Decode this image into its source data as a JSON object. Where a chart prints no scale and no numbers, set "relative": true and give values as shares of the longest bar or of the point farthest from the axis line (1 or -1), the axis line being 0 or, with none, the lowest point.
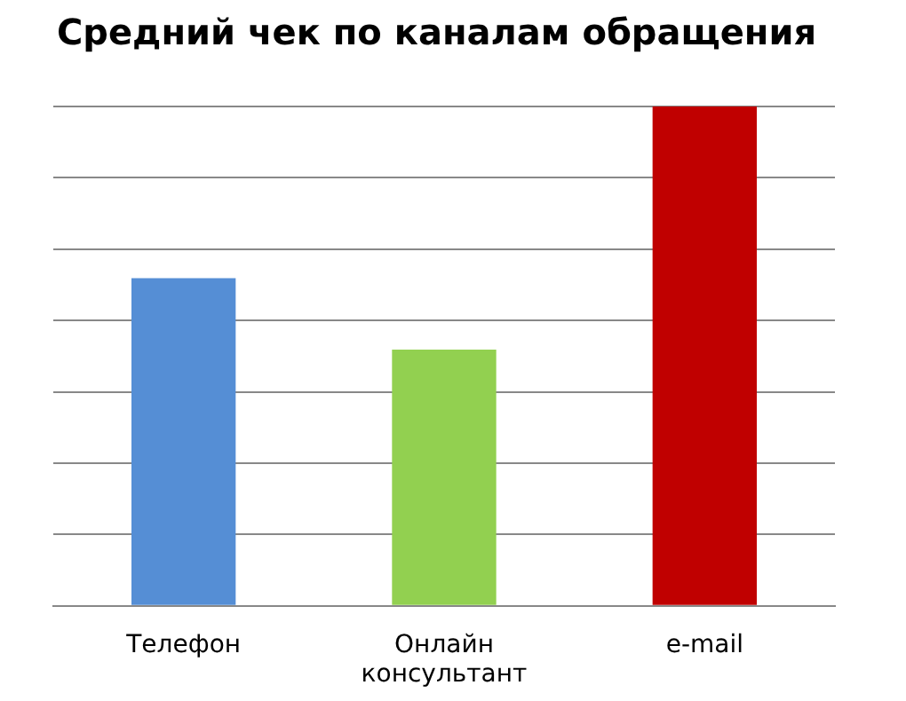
{
  "chart_data": {
    "type": "bar",
    "title": "Средний чек по каналам обращения",
    "categories": [
      "Телефон",
      "Онлайн консультант",
      "e-mail"
    ],
    "values": [
      0.656,
      0.513,
      1
    ],
    "colors": [
      "#558ed5",
      "#92d050",
      "#c00000"
    ],
    "relative": true,
    "grid": "y",
    "legend": false
  }
}
